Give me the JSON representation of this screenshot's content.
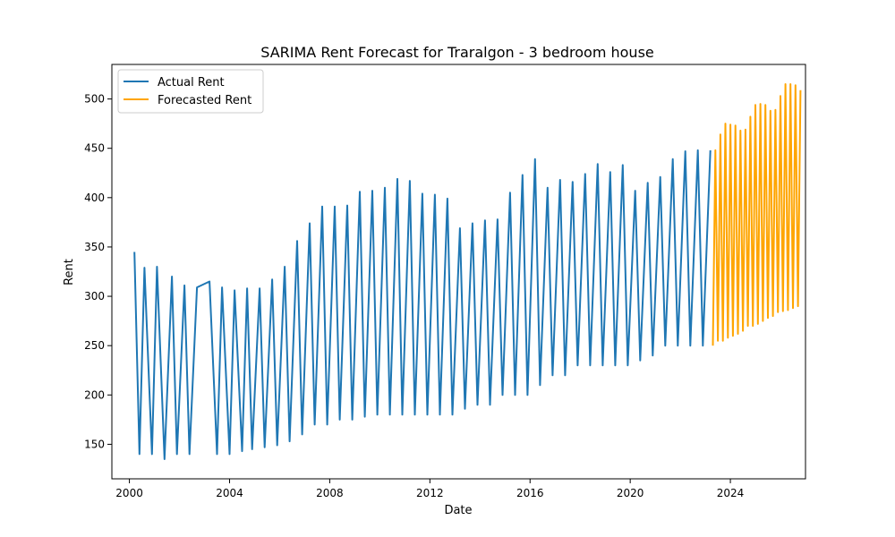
{
  "chart_data": {
    "type": "line",
    "title": "SARIMA Rent Forecast for Traralgon - 3 bedroom house",
    "xlabel": "Date",
    "ylabel": "Rent",
    "xlim": [
      1999.3,
      2027.0
    ],
    "ylim": [
      115,
      535
    ],
    "x_ticks": [
      2000,
      2004,
      2008,
      2012,
      2016,
      2020,
      2024
    ],
    "y_ticks": [
      150,
      200,
      250,
      300,
      350,
      400,
      450,
      500
    ],
    "grid": false,
    "legend": "upper-left",
    "series": [
      {
        "name": "Actual Rent",
        "color": "#1f77b4",
        "points": [
          [
            2000.2,
            345
          ],
          [
            2000.4,
            140
          ],
          [
            2000.6,
            329
          ],
          [
            2000.9,
            140
          ],
          [
            2001.1,
            330
          ],
          [
            2001.4,
            135
          ],
          [
            2001.7,
            320
          ],
          [
            2001.9,
            140
          ],
          [
            2002.2,
            311
          ],
          [
            2002.4,
            140
          ],
          [
            2002.7,
            309
          ],
          [
            2003.2,
            315
          ],
          [
            2003.5,
            140
          ],
          [
            2003.7,
            309
          ],
          [
            2004.0,
            140
          ],
          [
            2004.2,
            306
          ],
          [
            2004.5,
            143
          ],
          [
            2004.7,
            308
          ],
          [
            2004.9,
            145
          ],
          [
            2005.2,
            308
          ],
          [
            2005.4,
            147
          ],
          [
            2005.7,
            317
          ],
          [
            2005.9,
            149
          ],
          [
            2006.2,
            330
          ],
          [
            2006.4,
            153
          ],
          [
            2006.7,
            356
          ],
          [
            2006.9,
            160
          ],
          [
            2007.2,
            374
          ],
          [
            2007.4,
            170
          ],
          [
            2007.7,
            391
          ],
          [
            2007.9,
            170
          ],
          [
            2008.2,
            391
          ],
          [
            2008.4,
            175
          ],
          [
            2008.7,
            392
          ],
          [
            2008.9,
            175
          ],
          [
            2009.2,
            406
          ],
          [
            2009.4,
            178
          ],
          [
            2009.7,
            407
          ],
          [
            2009.9,
            180
          ],
          [
            2010.2,
            410
          ],
          [
            2010.4,
            180
          ],
          [
            2010.7,
            419
          ],
          [
            2010.9,
            180
          ],
          [
            2011.2,
            417
          ],
          [
            2011.4,
            180
          ],
          [
            2011.7,
            404
          ],
          [
            2011.9,
            180
          ],
          [
            2012.2,
            403
          ],
          [
            2012.4,
            180
          ],
          [
            2012.7,
            399
          ],
          [
            2012.9,
            180
          ],
          [
            2013.2,
            369
          ],
          [
            2013.4,
            186
          ],
          [
            2013.7,
            374
          ],
          [
            2013.9,
            190
          ],
          [
            2014.2,
            377
          ],
          [
            2014.4,
            190
          ],
          [
            2014.7,
            378
          ],
          [
            2014.9,
            200
          ],
          [
            2015.2,
            405
          ],
          [
            2015.4,
            200
          ],
          [
            2015.7,
            423
          ],
          [
            2015.9,
            200
          ],
          [
            2016.2,
            439
          ],
          [
            2016.4,
            210
          ],
          [
            2016.7,
            410
          ],
          [
            2016.9,
            220
          ],
          [
            2017.2,
            418
          ],
          [
            2017.4,
            220
          ],
          [
            2017.7,
            416
          ],
          [
            2017.9,
            230
          ],
          [
            2018.2,
            424
          ],
          [
            2018.4,
            230
          ],
          [
            2018.7,
            434
          ],
          [
            2018.9,
            230
          ],
          [
            2019.2,
            426
          ],
          [
            2019.4,
            230
          ],
          [
            2019.7,
            433
          ],
          [
            2019.9,
            230
          ],
          [
            2020.2,
            407
          ],
          [
            2020.4,
            235
          ],
          [
            2020.7,
            415
          ],
          [
            2020.9,
            240
          ],
          [
            2021.2,
            421
          ],
          [
            2021.4,
            250
          ],
          [
            2021.7,
            439
          ],
          [
            2021.9,
            250
          ],
          [
            2022.2,
            447
          ],
          [
            2022.4,
            250
          ],
          [
            2022.7,
            448
          ],
          [
            2022.9,
            250
          ],
          [
            2023.2,
            448
          ]
        ]
      },
      {
        "name": "Forecasted Rent",
        "color": "#ffa500",
        "points": [
          [
            2023.3,
            250
          ],
          [
            2023.4,
            448
          ],
          [
            2023.5,
            255
          ],
          [
            2023.6,
            464
          ],
          [
            2023.7,
            255
          ],
          [
            2023.8,
            475
          ],
          [
            2023.9,
            258
          ],
          [
            2024.0,
            474
          ],
          [
            2024.1,
            260
          ],
          [
            2024.2,
            473
          ],
          [
            2024.3,
            262
          ],
          [
            2024.4,
            468
          ],
          [
            2024.5,
            265
          ],
          [
            2024.6,
            469
          ],
          [
            2024.7,
            270
          ],
          [
            2024.8,
            482
          ],
          [
            2024.9,
            270
          ],
          [
            2025.0,
            494
          ],
          [
            2025.1,
            272
          ],
          [
            2025.2,
            495
          ],
          [
            2025.3,
            275
          ],
          [
            2025.4,
            494
          ],
          [
            2025.5,
            278
          ],
          [
            2025.6,
            488
          ],
          [
            2025.7,
            280
          ],
          [
            2025.8,
            489
          ],
          [
            2025.9,
            284
          ],
          [
            2026.0,
            503
          ],
          [
            2026.1,
            285
          ],
          [
            2026.2,
            515
          ],
          [
            2026.3,
            286
          ],
          [
            2026.4,
            515
          ],
          [
            2026.5,
            288
          ],
          [
            2026.6,
            514
          ],
          [
            2026.7,
            290
          ],
          [
            2026.8,
            509
          ]
        ]
      }
    ]
  }
}
